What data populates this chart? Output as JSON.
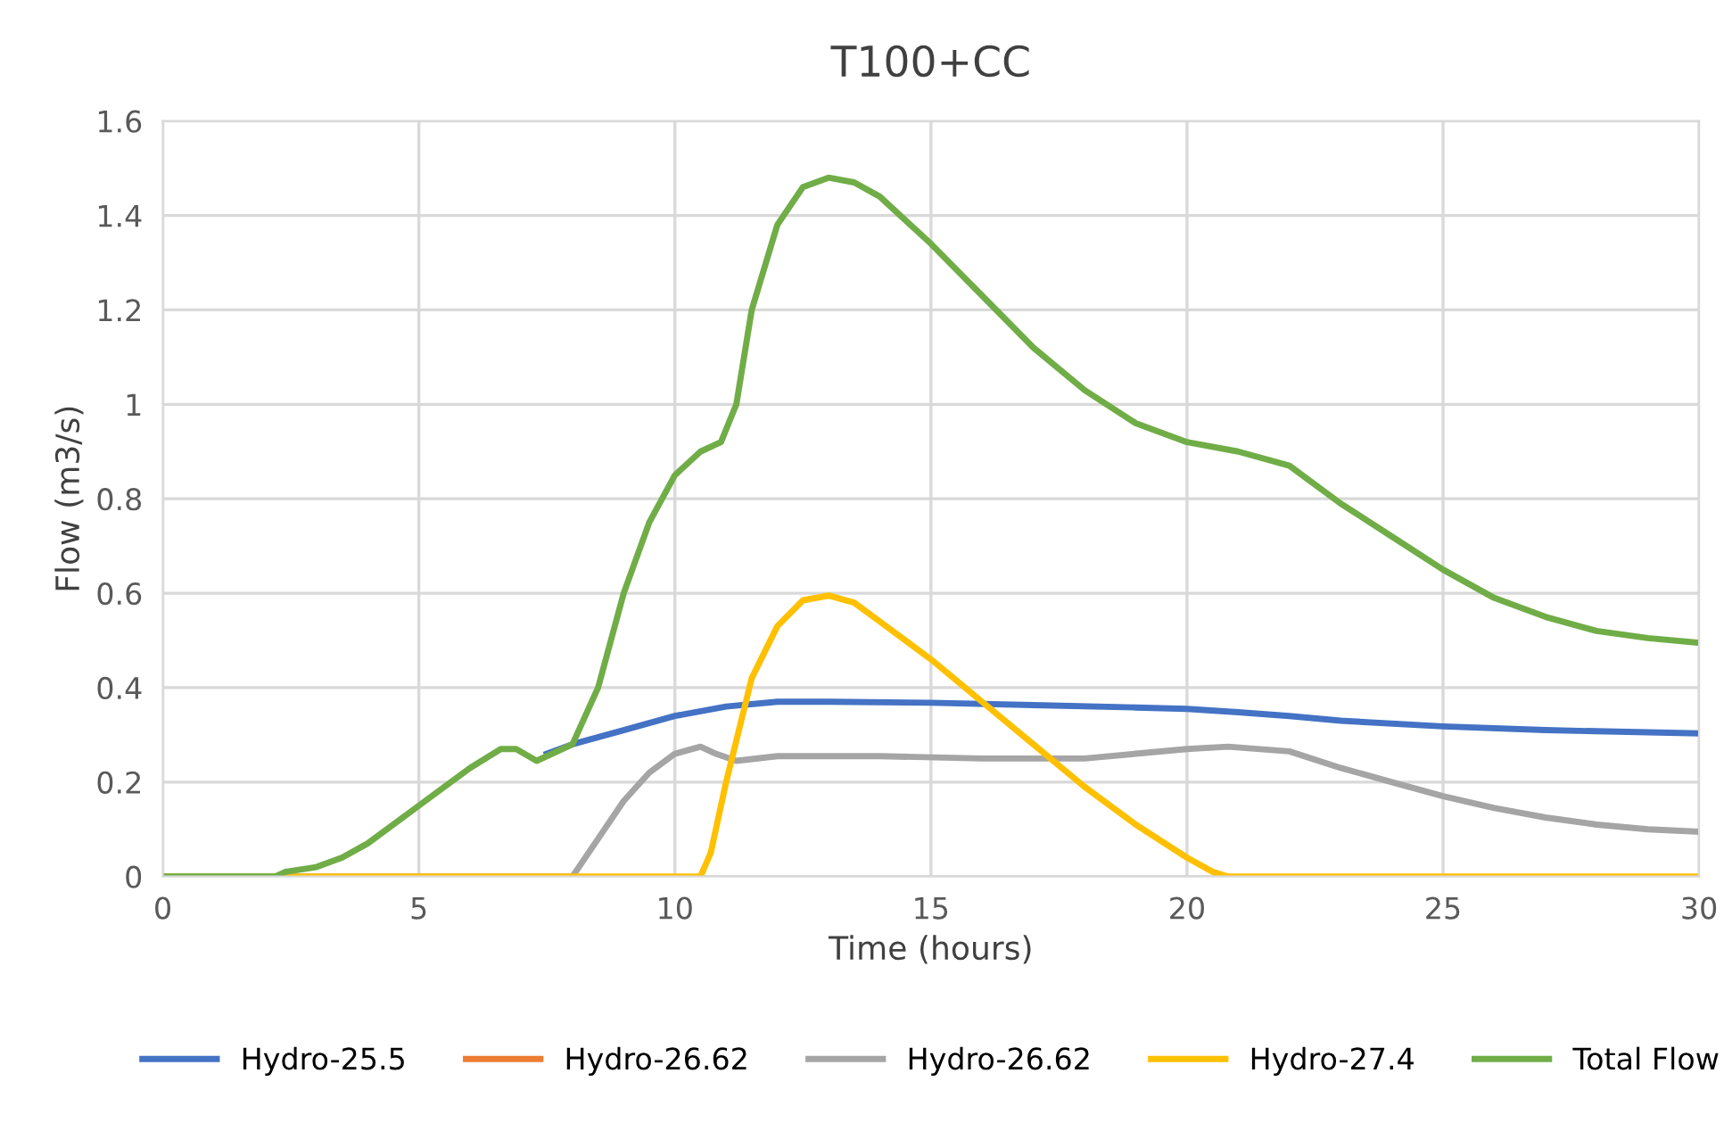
{
  "chart_data": {
    "type": "line",
    "title": "T100+CC",
    "xlabel": "Time (hours)",
    "ylabel": "Flow (m3/s)",
    "xlim": [
      0,
      30
    ],
    "xticks": [
      0,
      5,
      10,
      15,
      20,
      25,
      30
    ],
    "ylim": [
      0,
      1.6
    ],
    "yticks": [
      0,
      0.2,
      0.4,
      0.6,
      0.8,
      1,
      1.2,
      1.4,
      1.6
    ],
    "grid": true,
    "legend": "bottom",
    "marker": "none",
    "line_style": "solid",
    "series": [
      {
        "name": "Hydro-25.5",
        "color": "#4472c4",
        "x": [
          7.5,
          8,
          9,
          10,
          11,
          12,
          13,
          15,
          17,
          19,
          20,
          21,
          22,
          23,
          25,
          27,
          30
        ],
        "values": [
          0.26,
          0.28,
          0.31,
          0.34,
          0.36,
          0.37,
          0.37,
          0.368,
          0.363,
          0.358,
          0.355,
          0.348,
          0.34,
          0.33,
          0.318,
          0.31,
          0.303
        ]
      },
      {
        "name": "Hydro-26.62",
        "color": "#ed7d31"
      },
      {
        "name": "Hydro-26.62",
        "color": "#a5a5a5",
        "x": [
          0,
          8,
          8.5,
          9,
          9.5,
          10,
          10.5,
          10.8,
          11.2,
          12,
          14,
          16,
          18,
          19,
          20,
          20.8,
          22,
          23,
          24,
          25,
          26,
          27,
          28,
          29,
          30
        ],
        "values": [
          0,
          0,
          0.08,
          0.16,
          0.22,
          0.26,
          0.275,
          0.26,
          0.245,
          0.255,
          0.255,
          0.25,
          0.25,
          0.26,
          0.27,
          0.275,
          0.265,
          0.23,
          0.2,
          0.17,
          0.145,
          0.125,
          0.11,
          0.1,
          0.095
        ]
      },
      {
        "name": "Hydro-27.4",
        "color": "#ffc000",
        "x": [
          0,
          10.5,
          10.7,
          11,
          11.5,
          12,
          12.5,
          13,
          13.5,
          14,
          15,
          16,
          17,
          18,
          19,
          20,
          20.5,
          20.8,
          30
        ],
        "values": [
          0,
          0,
          0.05,
          0.2,
          0.42,
          0.53,
          0.585,
          0.595,
          0.58,
          0.54,
          0.46,
          0.37,
          0.28,
          0.19,
          0.11,
          0.04,
          0.01,
          0,
          0
        ]
      },
      {
        "name": "Total Flow",
        "color": "#70ad47",
        "x": [
          0,
          2.2,
          2.4,
          3,
          3.5,
          4,
          5,
          6,
          6.6,
          6.9,
          7.3,
          7.8,
          8,
          8.5,
          9,
          9.5,
          10,
          10.5,
          10.9,
          11.2,
          11.5,
          12,
          12.5,
          13,
          13.5,
          14,
          15,
          16,
          17,
          18,
          19,
          20,
          21,
          22,
          23,
          24,
          25,
          26,
          27,
          28,
          29,
          30
        ],
        "values": [
          0,
          0,
          0.01,
          0.02,
          0.04,
          0.07,
          0.15,
          0.23,
          0.27,
          0.27,
          0.245,
          0.27,
          0.28,
          0.4,
          0.6,
          0.75,
          0.85,
          0.9,
          0.92,
          1.0,
          1.2,
          1.38,
          1.46,
          1.48,
          1.47,
          1.44,
          1.34,
          1.23,
          1.12,
          1.03,
          0.96,
          0.92,
          0.9,
          0.87,
          0.79,
          0.72,
          0.65,
          0.59,
          0.55,
          0.52,
          0.505,
          0.495
        ]
      }
    ]
  }
}
